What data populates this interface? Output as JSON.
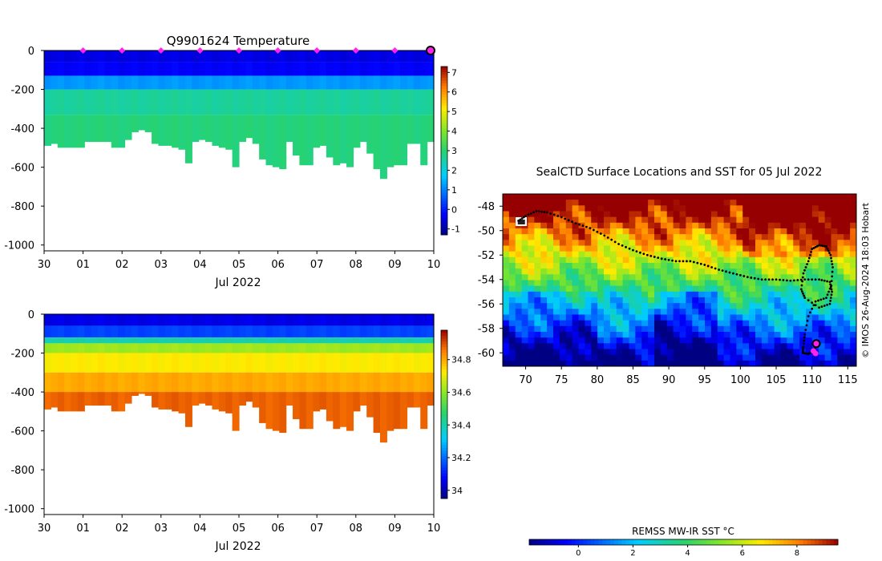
{
  "chart_data": [
    {
      "id": "temperature",
      "type": "heatmap",
      "title": "Q9901624  Temperature",
      "xlabel": "Jul 2022",
      "ylabel": "",
      "xticks": [
        "30",
        "01",
        "02",
        "03",
        "04",
        "05",
        "06",
        "07",
        "08",
        "09",
        "10"
      ],
      "ylim": [
        -1030,
        0
      ],
      "yticks": [
        0,
        -200,
        -400,
        -600,
        -800,
        -1000
      ],
      "colorbar": {
        "min": -1.3,
        "max": 7.3,
        "ticks": [
          -1,
          0,
          1,
          2,
          3,
          4,
          5,
          6,
          7
        ]
      },
      "profile_depths": [
        490,
        480,
        500,
        500,
        500,
        500,
        470,
        470,
        470,
        470,
        500,
        500,
        460,
        420,
        410,
        420,
        480,
        490,
        490,
        500,
        510,
        580,
        470,
        460,
        470,
        490,
        500,
        510,
        600,
        470,
        450,
        480,
        560,
        590,
        600,
        610,
        470,
        540,
        590,
        590,
        500,
        490,
        550,
        590,
        580,
        600,
        500,
        470,
        530,
        610,
        660,
        600,
        590,
        590,
        480,
        480,
        590,
        470
      ],
      "layers": [
        {
          "to_depth": 60,
          "value": -0.5
        },
        {
          "to_depth": 130,
          "value": -0.3
        },
        {
          "to_depth": 200,
          "value": 1.2
        },
        {
          "to_depth": 330,
          "value": 2.6
        },
        {
          "to_depth": 700,
          "value": 2.9
        }
      ],
      "markers": {
        "days": [
          "01",
          "02",
          "03",
          "04",
          "05",
          "06",
          "07",
          "08",
          "09"
        ],
        "current": "10",
        "color": "#ff22ee"
      }
    },
    {
      "id": "salinity",
      "type": "heatmap",
      "title": "",
      "xlabel": "Jul 2022",
      "ylabel": "",
      "xticks": [
        "30",
        "01",
        "02",
        "03",
        "04",
        "05",
        "06",
        "07",
        "08",
        "09",
        "10"
      ],
      "ylim": [
        -1030,
        0
      ],
      "yticks": [
        0,
        -200,
        -400,
        -600,
        -800,
        -1000
      ],
      "colorbar": {
        "min": 33.95,
        "max": 34.98,
        "ticks": [
          34,
          34.2,
          34.4,
          34.6,
          34.8
        ]
      },
      "profile_depths": [
        490,
        480,
        500,
        500,
        500,
        500,
        470,
        470,
        470,
        470,
        500,
        500,
        460,
        420,
        410,
        420,
        480,
        490,
        490,
        500,
        510,
        580,
        470,
        460,
        470,
        490,
        500,
        510,
        600,
        470,
        450,
        480,
        560,
        590,
        600,
        610,
        470,
        540,
        590,
        590,
        500,
        490,
        550,
        590,
        580,
        600,
        500,
        470,
        530,
        610,
        660,
        600,
        590,
        590,
        480,
        480,
        590,
        470
      ],
      "layers": [
        {
          "to_depth": 60,
          "value": 34.05
        },
        {
          "to_depth": 120,
          "value": 34.15
        },
        {
          "to_depth": 150,
          "value": 34.4
        },
        {
          "to_depth": 200,
          "value": 34.62
        },
        {
          "to_depth": 300,
          "value": 34.72
        },
        {
          "to_depth": 400,
          "value": 34.8
        },
        {
          "to_depth": 700,
          "value": 34.88
        }
      ]
    },
    {
      "id": "sst_map",
      "type": "heatmap",
      "title": "SealCTD Surface Locations and SST for 05 Jul 2022",
      "xticks": [
        70,
        75,
        80,
        85,
        90,
        95,
        100,
        105,
        110,
        115
      ],
      "xlim": [
        66.8,
        116.2
      ],
      "yticks": [
        -48,
        -50,
        -52,
        -54,
        -56,
        -58,
        -60
      ],
      "ylim": [
        -61.1,
        -47.0
      ],
      "colorbar": {
        "label": "REMSS MW-IR SST °C",
        "min": -1.8,
        "max": 9.5,
        "ticks": [
          0,
          2,
          4,
          6,
          8
        ]
      },
      "watermark": "© IMOS 26-Aug-2024 18:03 Hobart",
      "track": [
        [
          69.0,
          -49.2
        ],
        [
          70.0,
          -48.8
        ],
        [
          71.5,
          -48.4
        ],
        [
          73.0,
          -48.5
        ],
        [
          75.0,
          -48.9
        ],
        [
          77.0,
          -49.4
        ],
        [
          79.0,
          -49.8
        ],
        [
          81.0,
          -50.4
        ],
        [
          83.0,
          -51.1
        ],
        [
          85.0,
          -51.6
        ],
        [
          87.0,
          -52.0
        ],
        [
          89.0,
          -52.3
        ],
        [
          91.0,
          -52.5
        ],
        [
          93.0,
          -52.5
        ],
        [
          95.0,
          -52.8
        ],
        [
          97.0,
          -53.2
        ],
        [
          99.0,
          -53.5
        ],
        [
          101.0,
          -53.8
        ],
        [
          103.0,
          -54.0
        ],
        [
          105.0,
          -54.0
        ],
        [
          107.0,
          -54.1
        ],
        [
          109.0,
          -54.0
        ],
        [
          111.0,
          -54.0
        ],
        [
          112.5,
          -54.2
        ],
        [
          112.8,
          -55.0
        ],
        [
          112.5,
          -56.0
        ],
        [
          111.0,
          -56.3
        ],
        [
          109.0,
          -55.5
        ],
        [
          108.5,
          -54.8
        ],
        [
          108.8,
          -53.5
        ],
        [
          109.5,
          -52.5
        ],
        [
          110.0,
          -51.5
        ],
        [
          111.0,
          -51.2
        ],
        [
          112.0,
          -51.3
        ],
        [
          112.6,
          -52.0
        ],
        [
          112.9,
          -53.0
        ],
        [
          112.7,
          -54.5
        ],
        [
          112.0,
          -55.5
        ],
        [
          110.5,
          -55.8
        ],
        [
          109.5,
          -57.0
        ],
        [
          109.0,
          -58.5
        ],
        [
          108.8,
          -59.5
        ],
        [
          108.7,
          -60.0
        ],
        [
          109.5,
          -60.1
        ],
        [
          110.3,
          -59.8
        ],
        [
          110.6,
          -59.4
        ]
      ],
      "current_position": [
        110.6,
        -59.25
      ],
      "latest_markers": [
        [
          110.2,
          -59.85
        ],
        [
          110.5,
          -60.05
        ]
      ],
      "marker_color": "#ff22ee"
    }
  ]
}
